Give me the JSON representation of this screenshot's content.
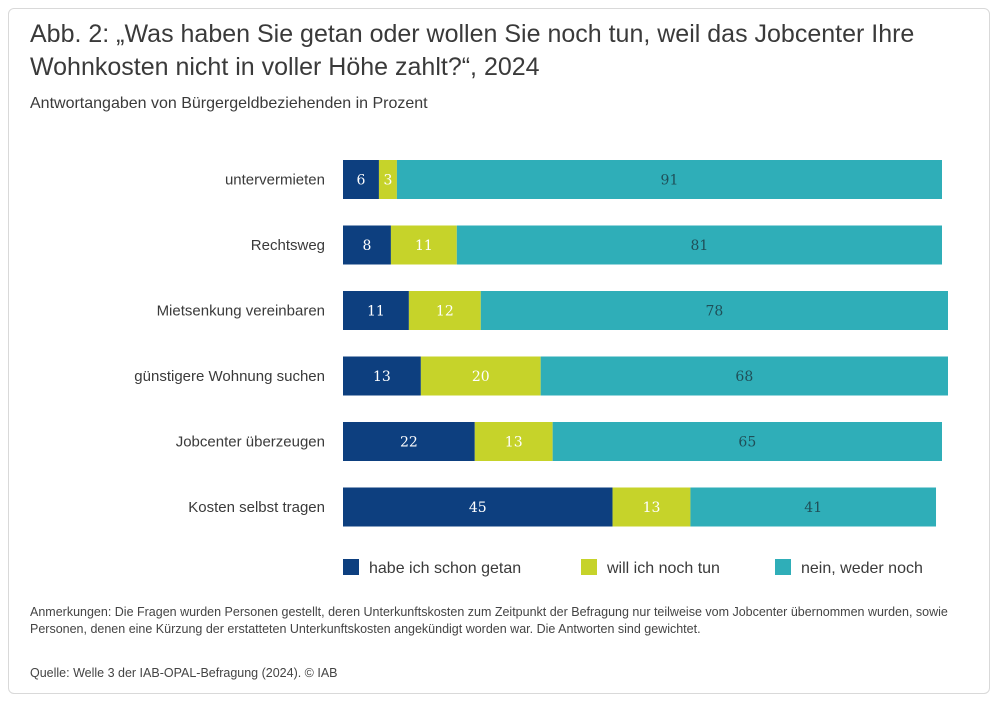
{
  "figure": {
    "title": "Abb. 2: „Was haben Sie getan oder wollen Sie noch tun, weil das Jobcenter Ihre Wohnkosten nicht in voller Höhe zahlt?“, 2024",
    "subtitle": "Antwortangaben von Bürgergeldbeziehenden in Prozent",
    "notes": "Anmerkungen: Die Fragen wurden Personen gestellt, deren Unterkunftskosten zum Zeitpunkt der Befragung nur teilweise vom Jobcenter übernommen wurden, sowie Personen, denen eine Kürzung der erstatteten Unterkunftskosten angekündigt worden war. Die Antworten sind gewichtet.",
    "source": "Quelle: Welle 3 der IAB-OPAL-Befragung (2024). © IAB"
  },
  "chart_data": {
    "type": "bar",
    "orientation": "horizontal",
    "stacked": true,
    "title": "Abb. 2: „Was haben Sie getan oder wollen Sie noch tun, weil das Jobcenter Ihre Wohnkosten nicht in voller Höhe zahlt?“, 2024",
    "subtitle": "Antwortangaben von Bürgergeldbeziehenden in Prozent",
    "categories": [
      "untervermieten",
      "Rechtsweg",
      "Mietsenkung vereinbaren",
      "günstigere Wohnung suchen",
      "Jobcenter überzeugen",
      "Kosten selbst tragen"
    ],
    "series": [
      {
        "name": "habe ich schon getan",
        "color": "#0d3f7f",
        "label_color": "#ffffff",
        "values": [
          6,
          8,
          11,
          13,
          22,
          45
        ]
      },
      {
        "name": "will ich noch tun",
        "color": "#c6d32a",
        "label_color": "#ffffff",
        "values": [
          3,
          11,
          12,
          20,
          13,
          13
        ]
      },
      {
        "name": "nein, weder noch",
        "color": "#2faeb8",
        "label_color": "#1f4f58",
        "values": [
          91,
          81,
          78,
          68,
          65,
          41
        ]
      }
    ],
    "xlim": [
      0,
      100
    ],
    "grid": false,
    "legend_position": "bottom-right"
  }
}
